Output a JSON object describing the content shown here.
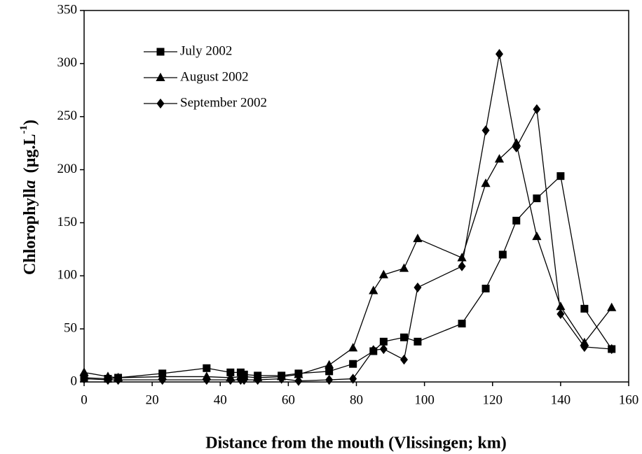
{
  "chart_data": {
    "type": "line",
    "xlabel": "Distance from the mouth (Vlissingen; km)",
    "ylabel": [
      "Chlorophyll",
      "a",
      "(µg.L",
      "-1",
      ")"
    ],
    "xlim": [
      0,
      160
    ],
    "xticks": [
      0,
      20,
      40,
      60,
      80,
      100,
      120,
      140,
      160
    ],
    "ylim": [
      0,
      350
    ],
    "yticks": [
      0,
      50,
      100,
      150,
      200,
      250,
      300,
      350
    ],
    "legend": "upper left",
    "series": [
      {
        "name": "July 2002",
        "color": "#000000",
        "marker": "square",
        "x": [
          0,
          7,
          10,
          23,
          36,
          43,
          46,
          47,
          51,
          58,
          63,
          72,
          79,
          85,
          88,
          94,
          98,
          111,
          118,
          123,
          127,
          133,
          140,
          147,
          155
        ],
        "values": [
          4,
          3,
          4,
          8,
          13,
          9,
          9,
          7,
          6,
          6,
          8,
          10,
          17,
          29,
          38,
          42,
          38,
          55,
          88,
          120,
          152,
          173,
          194,
          69,
          31
        ]
      },
      {
        "name": "August 2002",
        "color": "#000000",
        "marker": "triangle",
        "x": [
          0,
          7,
          10,
          23,
          36,
          43,
          46,
          47,
          51,
          58,
          63,
          72,
          79,
          85,
          88,
          94,
          98,
          111,
          118,
          122,
          127,
          133,
          140,
          147,
          155
        ],
        "values": [
          9,
          5,
          4,
          5,
          5,
          4,
          5,
          5,
          4,
          5,
          7,
          16,
          32,
          86,
          101,
          107,
          135,
          117,
          187,
          210,
          225,
          137,
          71,
          37,
          70
        ]
      },
      {
        "name": "September 2002",
        "color": "#000000",
        "marker": "diamond",
        "x": [
          0,
          7,
          10,
          23,
          36,
          43,
          46,
          47,
          51,
          58,
          63,
          72,
          79,
          85,
          88,
          94,
          98,
          111,
          118,
          122,
          127,
          133,
          140,
          147,
          155
        ],
        "values": [
          3,
          2,
          2,
          2,
          2,
          2,
          2,
          2,
          2,
          3,
          1,
          2,
          3,
          30,
          31,
          21,
          89,
          109,
          237,
          309,
          221,
          257,
          64,
          33,
          31
        ]
      }
    ]
  }
}
